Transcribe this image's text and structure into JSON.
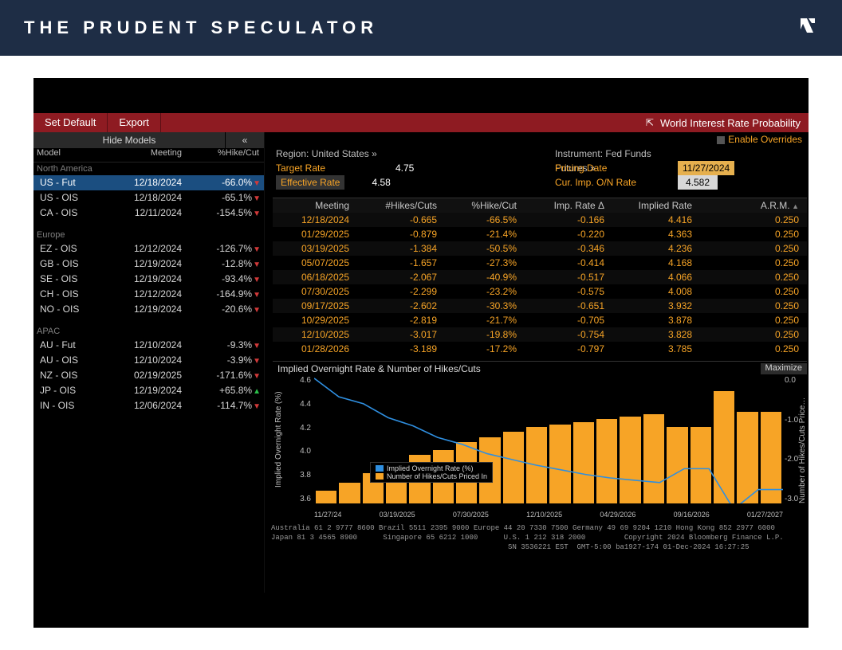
{
  "brand": "THE PRUDENT SPECULATOR",
  "colors": {
    "header_bg": "#1e2d45",
    "red_bar": "#8e1b22",
    "orange": "#f7a426",
    "blue_line": "#2f8fe0",
    "sel_row": "#1b4e80",
    "gray_text": "#d7d7d7"
  },
  "red_bar": {
    "set_default": "Set Default",
    "export": "Export",
    "title": "World Interest Rate Probability"
  },
  "left": {
    "hide": "Hide Models",
    "chev": "«",
    "cols": {
      "model": "Model",
      "meeting": "Meeting",
      "pct": "%Hike/Cut"
    },
    "groups": [
      {
        "name": "North America",
        "rows": [
          {
            "mdl": "US - Fut",
            "mtg": "12/18/2024",
            "pct": "-66.0%",
            "dir": "down",
            "sel": true
          },
          {
            "mdl": "US - OIS",
            "mtg": "12/18/2024",
            "pct": "-65.1%",
            "dir": "down"
          },
          {
            "mdl": "CA - OIS",
            "mtg": "12/11/2024",
            "pct": "-154.5%",
            "dir": "down"
          }
        ]
      },
      {
        "name": "Europe",
        "rows": [
          {
            "mdl": "EZ - OIS",
            "mtg": "12/12/2024",
            "pct": "-126.7%",
            "dir": "down"
          },
          {
            "mdl": "GB - OIS",
            "mtg": "12/19/2024",
            "pct": "-12.8%",
            "dir": "down"
          },
          {
            "mdl": "SE - OIS",
            "mtg": "12/19/2024",
            "pct": "-93.4%",
            "dir": "down"
          },
          {
            "mdl": "CH - OIS",
            "mtg": "12/12/2024",
            "pct": "-164.9%",
            "dir": "down"
          },
          {
            "mdl": "NO - OIS",
            "mtg": "12/19/2024",
            "pct": "-20.6%",
            "dir": "down"
          }
        ]
      },
      {
        "name": "APAC",
        "rows": [
          {
            "mdl": "AU - Fut",
            "mtg": "12/10/2024",
            "pct": "-9.3%",
            "dir": "down"
          },
          {
            "mdl": "AU - OIS",
            "mtg": "12/10/2024",
            "pct": "-3.9%",
            "dir": "down"
          },
          {
            "mdl": "NZ - OIS",
            "mtg": "02/19/2025",
            "pct": "-171.6%",
            "dir": "down"
          },
          {
            "mdl": "JP - OIS",
            "mtg": "12/19/2024",
            "pct": "+65.8%",
            "dir": "up"
          },
          {
            "mdl": "IN - OIS",
            "mtg": "12/06/2024",
            "pct": "-114.7%",
            "dir": "down"
          }
        ]
      }
    ]
  },
  "right": {
    "enable_overrides": "Enable Overrides",
    "region_label": "Region: United States »",
    "target_rate_label": "Target Rate",
    "target_rate_value": "4.75",
    "effective_rate_label": "Effective Rate",
    "effective_rate_value": "4.58",
    "instrument_label": "Instrument: Fed Funds Futures »",
    "pricing_date_label": "Pricing Date",
    "pricing_date_value": "11/27/2024",
    "cur_imp_label": "Cur. Imp. O/N Rate",
    "cur_imp_value": "4.582"
  },
  "table": {
    "cols": {
      "meeting": "Meeting",
      "hikes": "#Hikes/Cuts",
      "pct": "%Hike/Cut",
      "delta": "Imp. Rate Δ",
      "imp": "Implied Rate",
      "arm": "A.R.M."
    },
    "rows": [
      {
        "m": "12/18/2024",
        "h": "-0.665",
        "p": "-66.5%",
        "d": "-0.166",
        "i": "4.416",
        "a": "0.250"
      },
      {
        "m": "01/29/2025",
        "h": "-0.879",
        "p": "-21.4%",
        "d": "-0.220",
        "i": "4.363",
        "a": "0.250"
      },
      {
        "m": "03/19/2025",
        "h": "-1.384",
        "p": "-50.5%",
        "d": "-0.346",
        "i": "4.236",
        "a": "0.250"
      },
      {
        "m": "05/07/2025",
        "h": "-1.657",
        "p": "-27.3%",
        "d": "-0.414",
        "i": "4.168",
        "a": "0.250"
      },
      {
        "m": "06/18/2025",
        "h": "-2.067",
        "p": "-40.9%",
        "d": "-0.517",
        "i": "4.066",
        "a": "0.250"
      },
      {
        "m": "07/30/2025",
        "h": "-2.299",
        "p": "-23.2%",
        "d": "-0.575",
        "i": "4.008",
        "a": "0.250"
      },
      {
        "m": "09/17/2025",
        "h": "-2.602",
        "p": "-30.3%",
        "d": "-0.651",
        "i": "3.932",
        "a": "0.250"
      },
      {
        "m": "10/29/2025",
        "h": "-2.819",
        "p": "-21.7%",
        "d": "-0.705",
        "i": "3.878",
        "a": "0.250"
      },
      {
        "m": "12/10/2025",
        "h": "-3.017",
        "p": "-19.8%",
        "d": "-0.754",
        "i": "3.828",
        "a": "0.250"
      },
      {
        "m": "01/28/2026",
        "h": "-3.189",
        "p": "-17.2%",
        "d": "-0.797",
        "i": "3.785",
        "a": "0.250"
      }
    ]
  },
  "chart": {
    "title": "Implied Overnight Rate & Number of Hikes/Cuts",
    "maximize": "Maximize",
    "y_left_label": "Implied Overnight Rate (%)",
    "y_right_label": "Number of Hikes/Cuts Price…",
    "y_left_ticks": [
      "4.6",
      "4.4",
      "4.2",
      "4.0",
      "3.8",
      "3.6"
    ],
    "y_right_ticks": [
      "0.0",
      "-1.0",
      "-2.0",
      "-3.0"
    ],
    "x_ticks": [
      "11/27/24",
      "03/19/2025",
      "07/30/2025",
      "12/10/2025",
      "04/29/2026",
      "09/16/2026",
      "01/27/2027"
    ],
    "legend": {
      "line": "Implied Overnight Rate (%)",
      "bars": "Number of Hikes/Cuts Priced In"
    },
    "bars_pct": [
      10,
      16,
      24,
      30,
      38,
      42,
      48,
      52,
      56,
      60,
      62,
      64,
      66,
      68,
      70,
      60,
      60,
      88,
      72,
      72
    ],
    "line_rate": [
      4.58,
      4.42,
      4.36,
      4.24,
      4.17,
      4.07,
      4.01,
      3.93,
      3.88,
      3.83,
      3.79,
      3.75,
      3.72,
      3.7,
      3.68,
      3.8,
      3.8,
      3.45,
      3.62,
      3.62
    ]
  },
  "footer": "Australia 61 2 9777 8600 Brazil 5511 2395 9000 Europe 44 20 7330 7500 Germany 49 69 9204 1210 Hong Kong 852 2977 6000\nJapan 81 3 4565 8900      Singapore 65 6212 1000      U.S. 1 212 318 2000         Copyright 2024 Bloomberg Finance L.P.\n                                                       SN 3536221 EST  GMT-5:00 ba1927-174 01-Dec-2024 16:27:25"
}
